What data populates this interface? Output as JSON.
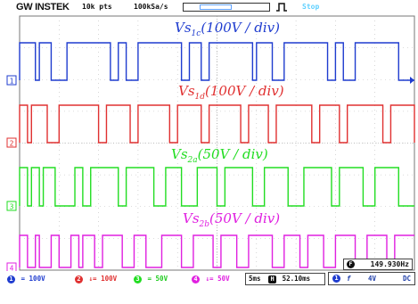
{
  "header": {
    "brand": "GW INSTEK",
    "record_length": "10k pts",
    "sample_rate": "100kSa/s",
    "run_status": "Stop"
  },
  "channels": [
    {
      "id": "1",
      "color": "#1f3ccf",
      "label_main": "Vs",
      "label_sub": "1c",
      "label_scale": "(100V / div)",
      "scale": "100V",
      "coupling": "="
    },
    {
      "id": "2",
      "color": "#e03030",
      "label_main": "Vs",
      "label_sub": "1d",
      "label_scale": "(100V / div)",
      "scale": "100V",
      "coupling": "↓="
    },
    {
      "id": "3",
      "color": "#22dd22",
      "label_main": "Vs",
      "label_sub": "2a",
      "label_scale": "(50V / div)",
      "scale": "50V",
      "coupling": "="
    },
    {
      "id": "4",
      "color": "#e020e0",
      "label_main": "Vs",
      "label_sub": "2b",
      "label_scale": "(50V / div)",
      "scale": "50V",
      "coupling": "↓="
    }
  ],
  "status": {
    "timebase": "5ms",
    "h_position_icon": "H",
    "h_position": "52.10ms",
    "frequency_icon": "F",
    "frequency": "149.930Hz",
    "trigger_source": "1",
    "trigger_slope": "f",
    "trigger_level": "4V",
    "trigger_coupling": "DC"
  },
  "icons": {
    "acquire": "pulse-icon",
    "trigger_marker": "trigger-arrow-icon"
  }
}
